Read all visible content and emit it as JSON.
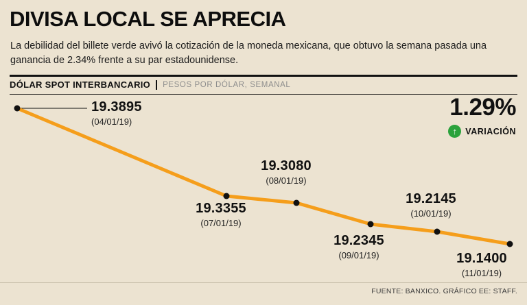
{
  "page": {
    "headline": "DIVISA LOCAL SE APRECIA",
    "subtitle": "La debilidad del billete verde avivó la cotización de la moneda mexicana, que obtuvo la semana pasada una ganancia de 2.34% frente a su par estadounidense."
  },
  "kicker": {
    "title": "DÓLAR SPOT INTERBANCARIO",
    "subtitle": "PESOS POR DÓLAR, SEMANAL"
  },
  "stat": {
    "value": "1.29%",
    "label": "VARIACIÓN",
    "icon": "up-arrow-icon",
    "icon_glyph": "↑",
    "icon_color": "#2BA23C"
  },
  "footer": {
    "source": "FUENTE: BANXICO. GRÁFICO EE: STAFF."
  },
  "chart_data": {
    "type": "line",
    "title": "DÓLAR SPOT INTERBANCARIO",
    "subtitle": "PESOS POR DÓLAR, SEMANAL",
    "x": [
      "04/01/19",
      "07/01/19",
      "08/01/19",
      "09/01/19",
      "10/01/19",
      "11/01/19"
    ],
    "values": [
      19.3895,
      19.3355,
      19.308,
      19.2345,
      19.2145,
      19.14
    ],
    "points": [
      {
        "value": "19.3895",
        "date": "(04/01/19)"
      },
      {
        "value": "19.3355",
        "date": "(07/01/19)"
      },
      {
        "value": "19.3080",
        "date": "(08/01/19)"
      },
      {
        "value": "19.2345",
        "date": "(09/01/19)"
      },
      {
        "value": "19.2145",
        "date": "(10/01/19)"
      },
      {
        "value": "19.1400",
        "date": "(11/01/19)"
      }
    ],
    "variation": "1.29%",
    "line_color": "#F59E1B",
    "dot_color": "#111111",
    "background": "#ECE3D1",
    "ylim": [
      19.14,
      19.39
    ],
    "grid": false,
    "legend": false
  }
}
